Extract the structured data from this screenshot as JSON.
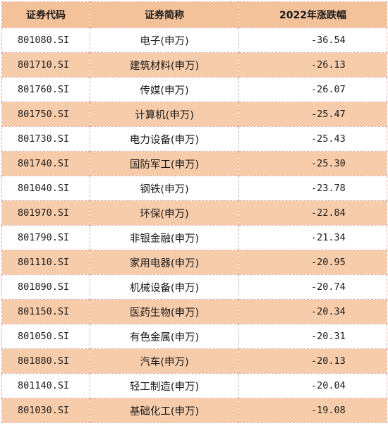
{
  "table": {
    "headers": {
      "code": "证券代码",
      "name": "证券简称",
      "change": "2022年涨跌幅"
    },
    "rows": [
      {
        "code": "801080.SI",
        "name": "电子(申万)",
        "change": "-36.54"
      },
      {
        "code": "801710.SI",
        "name": "建筑材料(申万)",
        "change": "-26.13"
      },
      {
        "code": "801760.SI",
        "name": "传媒(申万)",
        "change": "-26.07"
      },
      {
        "code": "801750.SI",
        "name": "计算机(申万)",
        "change": "-25.47"
      },
      {
        "code": "801730.SI",
        "name": "电力设备(申万)",
        "change": "-25.43"
      },
      {
        "code": "801740.SI",
        "name": "国防军工(申万)",
        "change": "-25.30"
      },
      {
        "code": "801040.SI",
        "name": "钢铁(申万)",
        "change": "-23.78"
      },
      {
        "code": "801970.SI",
        "name": "环保(申万)",
        "change": "-22.84"
      },
      {
        "code": "801790.SI",
        "name": "非银金融(申万)",
        "change": "-21.34"
      },
      {
        "code": "801110.SI",
        "name": "家用电器(申万)",
        "change": "-20.95"
      },
      {
        "code": "801890.SI",
        "name": "机械设备(申万)",
        "change": "-20.74"
      },
      {
        "code": "801150.SI",
        "name": "医药生物(申万)",
        "change": "-20.34"
      },
      {
        "code": "801050.SI",
        "name": "有色金属(申万)",
        "change": "-20.31"
      },
      {
        "code": "801880.SI",
        "name": "汽车(申万)",
        "change": "-20.13"
      },
      {
        "code": "801140.SI",
        "name": "轻工制造(申万)",
        "change": "-20.04"
      },
      {
        "code": "801030.SI",
        "name": "基础化工(申万)",
        "change": "-19.08"
      }
    ]
  },
  "colors": {
    "header_bg": "#f4c29a",
    "stripe_bg": "#f7ccaa",
    "border": "#e2a9a0"
  }
}
